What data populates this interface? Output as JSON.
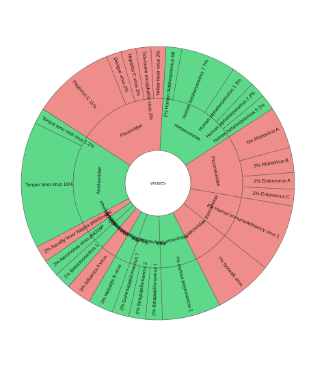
{
  "chart_data": {
    "type": "sunburst",
    "center_label": "viruses",
    "colors": {
      "green": "#5ed98a",
      "red": "#ef8d8a",
      "stroke": "#555555",
      "text": "#111111"
    },
    "families": [
      {
        "name": "Herpesviridae",
        "color": "green",
        "share": 15
      },
      {
        "name": "Picornaviridae",
        "color": "red",
        "share": 12
      },
      {
        "name": "Retroviridae",
        "color": "red",
        "share": 8
      },
      {
        "name": "Caliciviridae",
        "color": "red",
        "share": 7
      },
      {
        "name": "Polyomaviridae",
        "color": "green",
        "share": 7
      },
      {
        "name": "Papillomaviridae",
        "color": "green",
        "share": 6
      },
      {
        "name": "Hepadnaviridae",
        "color": "green",
        "share": 3
      },
      {
        "name": "Orthomyxoviridae",
        "color": "red",
        "share": 3
      },
      {
        "name": "Coronaviridae",
        "color": "green",
        "share": 2
      },
      {
        "name": "Myoviridae",
        "color": "green",
        "share": 2
      },
      {
        "name": "Phenuiviridae",
        "color": "red",
        "share": 2
      },
      {
        "name": "Anelloviridae",
        "color": "green",
        "share": 17
      },
      {
        "name": "Flaviviridae",
        "color": "red",
        "share": 17
      }
    ],
    "species": [
      {
        "label": "2% Human betaherpesvirus 6B",
        "family": "Herpesviridae",
        "value": 2,
        "color": "green"
      },
      {
        "label": "5% Rhinovirus A",
        "family": "Picornaviridae",
        "value": 5,
        "color": "red"
      },
      {
        "label": "3% Rhinovirus B",
        "family": "Picornaviridae",
        "value": 3,
        "color": "red"
      },
      {
        "label": "2% Enterovirus A",
        "family": "Picornaviridae",
        "value": 2,
        "color": "red"
      },
      {
        "label": "2% Enterovirus C",
        "family": "Picornaviridae",
        "value": 2,
        "color": "red"
      },
      {
        "label": "8% Human immunodeficiency virus 1",
        "family": "Retroviridae",
        "value": 8,
        "color": "red"
      },
      {
        "label": "7% Norwalk virus",
        "family": "Caliciviridae",
        "value": 7,
        "color": "red"
      },
      {
        "label": "7% Human polyomavirus 2",
        "family": "Polyomaviridae",
        "value": 7,
        "color": "green"
      },
      {
        "label": "2% Betapapillomavirus 1",
        "family": "Papillomaviridae",
        "value": 2,
        "color": "green"
      },
      {
        "label": "2% Betapapillomavirus 2",
        "family": "Papillomaviridae",
        "value": 2,
        "color": "green"
      },
      {
        "label": "2% Gammapapillomavirus 7",
        "family": "Papillomaviridae",
        "value": 2,
        "color": "green"
      },
      {
        "label": "3% Hepatitis B virus",
        "family": "Hepadnaviridae",
        "value": 3,
        "color": "green"
      },
      {
        "label": "3% Influenza A virus",
        "family": "Orthomyxoviridae",
        "value": 3,
        "color": "red"
      },
      {
        "label": "2% Betacoronavirus 1",
        "family": "Coronaviridae",
        "value": 2,
        "color": "green"
      },
      {
        "label": "2% Aeromonas virus phiO18P",
        "family": "Myoviridae",
        "value": 2,
        "color": "green"
      },
      {
        "label": "2% Sandfly fever Naples phlebovirus",
        "family": "Phenuiviridae",
        "value": 2,
        "color": "red"
      },
      {
        "label": "Torque teno virus 16%",
        "family": "Anelloviridae",
        "value": 16,
        "color": "green"
      },
      {
        "label": "Torque teno midi virus 1 2%",
        "family": "Anelloviridae",
        "value": 2,
        "color": "green"
      },
      {
        "label": "Pegivirus C 11%",
        "family": "Flaviviridae",
        "value": 11,
        "color": "red"
      },
      {
        "label": "Dengue virus 2%",
        "family": "Flaviviridae",
        "value": 2,
        "color": "red"
      },
      {
        "label": "Hepatitis C virus 2%",
        "family": "Flaviviridae",
        "value": 2,
        "color": "red"
      },
      {
        "label": "Tick-borne encephalitis virus 2%",
        "family": "Flaviviridae",
        "value": 2,
        "color": "red"
      },
      {
        "label": "Yellow fever virus 2%",
        "family": "Flaviviridae",
        "value": 2,
        "color": "red"
      },
      {
        "label": "Human betaherpesvirus 7 7%",
        "family": "Herpesviridae",
        "value": 7,
        "color": "green"
      },
      {
        "label": "Human alphaherpesvirus 1 3%",
        "family": "Herpesviridae",
        "value": 3,
        "color": "green"
      },
      {
        "label": "Human alphaherpesvirus 2 2%",
        "family": "Herpesviridae",
        "value": 2,
        "color": "green"
      },
      {
        "label": "Human betaherpesvirus 5 2%",
        "family": "Herpesviridae",
        "value": 2,
        "color": "green"
      }
    ]
  }
}
